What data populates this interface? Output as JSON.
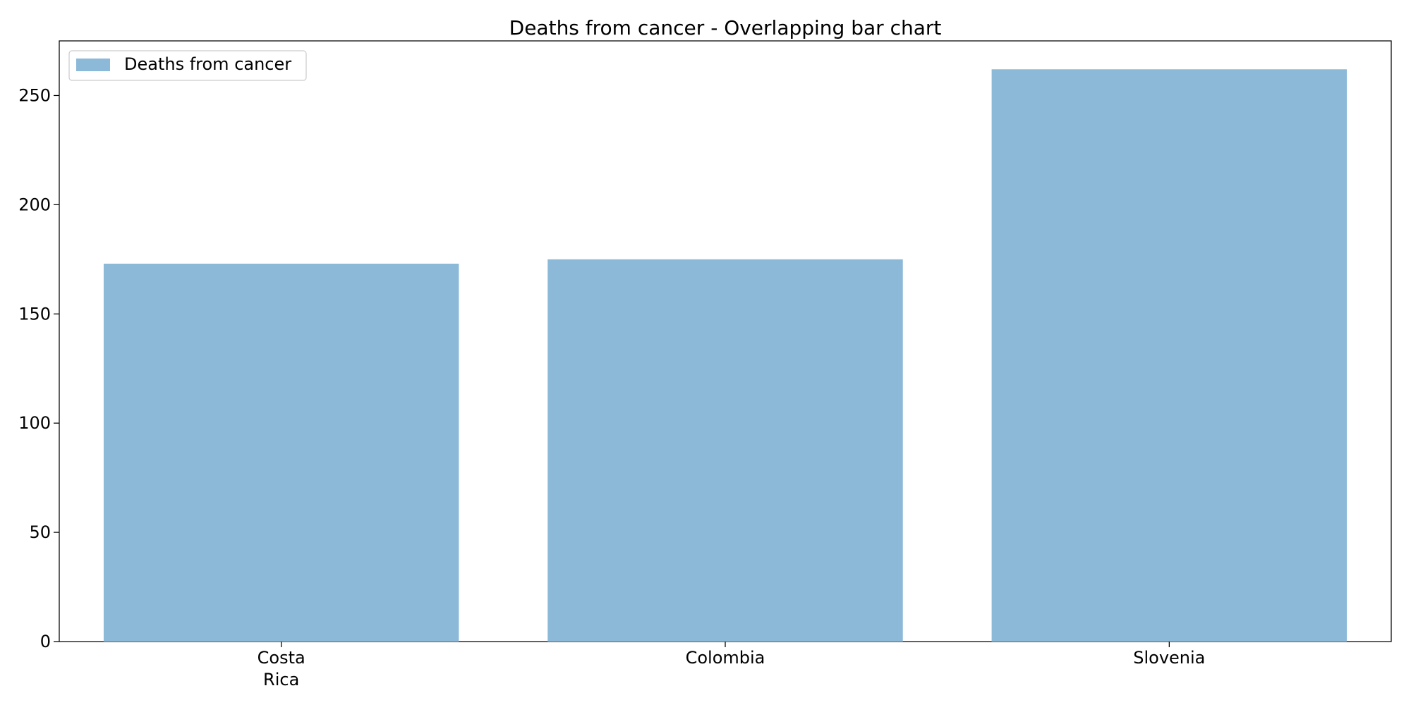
{
  "chart_data": {
    "type": "bar",
    "title": "Deaths from cancer - Overlapping bar chart",
    "xlabel": "",
    "ylabel": "",
    "categories": [
      [
        "Costa",
        "Rica"
      ],
      [
        "Colombia"
      ],
      [
        "Slovenia"
      ]
    ],
    "series": [
      {
        "name": "Deaths from cancer",
        "values": [
          173,
          175,
          262
        ],
        "color": "#8db9d9"
      }
    ],
    "ylim": [
      0,
      275
    ],
    "yticks": [
      0,
      50,
      100,
      150,
      200,
      250
    ],
    "legend_position": "top-left",
    "grid": false
  }
}
